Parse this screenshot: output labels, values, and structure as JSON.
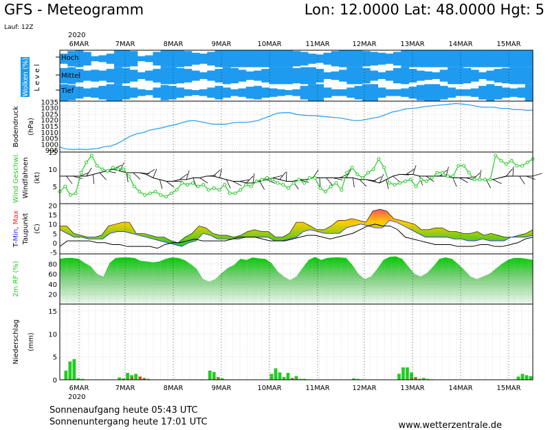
{
  "header": {
    "title": "GFS - Meteogramm",
    "coords": "Lon: 12.0000 Lat: 48.0000 Hgt: 5",
    "run": "Lauf: 12Z"
  },
  "footer": {
    "sunrise": "Sonnenaufgang heute 05:43 UTC",
    "sunset": "Sonnenuntergang heute 17:01 UTC",
    "site": "www.wetterzentrale.de"
  },
  "colors": {
    "cloud": "#1e9bf0",
    "pressure": "#1e9bf0",
    "wind": "#22cc22",
    "tmin": "#2222ff",
    "tmax": "#ff2222",
    "rh": "#22cc22",
    "precip_rain": "#22cc22",
    "precip_conv": "#ff3333"
  },
  "chart_data": {
    "year_label": "2020",
    "x_labels": [
      "6MAR",
      "7MAR",
      "8MAR",
      "9MAR",
      "10MAR",
      "11MAR",
      "12MAR",
      "13MAR",
      "14MAR",
      "15MAR"
    ],
    "panels": [
      {
        "id": "wolken",
        "type": "heatmap",
        "ylabel": "Wolken (%)",
        "ylabel2": "Level",
        "levels": [
          "Hoch",
          "Mittel",
          "Tief"
        ],
        "series": [
          {
            "name": "Hoch",
            "values": [
              60,
              90,
              100,
              80,
              30,
              40,
              60,
              100,
              100,
              90,
              30,
              40,
              80,
              100,
              100,
              100,
              90,
              70,
              60,
              80,
              100,
              100,
              100,
              100,
              100,
              100,
              100,
              100,
              100,
              100,
              90,
              80,
              60,
              50,
              70,
              90,
              100,
              100,
              100,
              90,
              80,
              70,
              60,
              80,
              100,
              100,
              100,
              100,
              100,
              100,
              100,
              100,
              100,
              100,
              100,
              100,
              100,
              100,
              100,
              100,
              100
            ]
          },
          {
            "name": "Mittel",
            "values": [
              90,
              100,
              80,
              60,
              70,
              60,
              80,
              100,
              90,
              70,
              40,
              60,
              80,
              100,
              100,
              90,
              80,
              60,
              40,
              60,
              80,
              100,
              90,
              70,
              50,
              60,
              80,
              100,
              100,
              100,
              90,
              100,
              100,
              80,
              40,
              50,
              70,
              100,
              100,
              90,
              60,
              40,
              60,
              90,
              100,
              80,
              60,
              50,
              40,
              70,
              100,
              100,
              90,
              70,
              40,
              60,
              80,
              90,
              100,
              100,
              100
            ]
          },
          {
            "name": "Tief",
            "values": [
              100,
              90,
              70,
              50,
              60,
              80,
              100,
              100,
              80,
              60,
              40,
              30,
              60,
              90,
              80,
              60,
              40,
              30,
              40,
              60,
              80,
              60,
              40,
              50,
              70,
              80,
              60,
              50,
              40,
              30,
              40,
              80,
              100,
              100,
              60,
              40,
              40,
              60,
              80,
              100,
              100,
              60,
              40,
              40,
              50,
              70,
              90,
              100,
              100,
              80,
              60,
              40,
              40,
              50,
              80,
              100,
              80,
              60,
              50,
              60,
              100
            ]
          }
        ]
      },
      {
        "id": "bodendruck",
        "type": "line",
        "ylabel": "Bodendruck",
        "unit": "(hPa)",
        "yticks": [
          995,
          1000,
          1005,
          1010,
          1015,
          1020,
          1025,
          1030,
          1035
        ],
        "ylim": [
          994,
          1036
        ],
        "values": [
          998,
          996.5,
          996,
          996.5,
          996,
          996.5,
          997,
          998.5,
          999,
          1001,
          1004,
          1007,
          1009,
          1010,
          1012,
          1013,
          1014,
          1015.5,
          1016.5,
          1018,
          1019.5,
          1020,
          1019,
          1018,
          1017,
          1017,
          1017,
          1018,
          1018.5,
          1018.5,
          1019,
          1020,
          1022,
          1024,
          1026,
          1026.5,
          1026.5,
          1025,
          1024.5,
          1024,
          1024,
          1023.5,
          1023,
          1022.5,
          1022,
          1021,
          1020,
          1020,
          1021,
          1022,
          1023,
          1025,
          1027,
          1028,
          1029.5,
          1030,
          1030.5,
          1031.5,
          1032,
          1032.5,
          1033,
          1033.5,
          1034,
          1033.5,
          1033,
          1032,
          1031,
          1031,
          1031,
          1030,
          1030,
          1029,
          1029,
          1028.5,
          1028.5
        ]
      },
      {
        "id": "wind",
        "type": "line",
        "ylabel": "Wind Geschwi.",
        "ylabel2": "Windfahnen",
        "unit": "(kt)",
        "yticks": [
          5,
          10,
          15
        ],
        "ylim": [
          0,
          15
        ],
        "gust": [
          3.5,
          5,
          2.5,
          3,
          9,
          12,
          14,
          11,
          10,
          9.5,
          10.5,
          10,
          10,
          8,
          5,
          3.5,
          2.5,
          3,
          3.5,
          2.5,
          2,
          3,
          4,
          6,
          5.5,
          6,
          5,
          5.5,
          4,
          4.5,
          4,
          5.5,
          3,
          3,
          4,
          5.5,
          5,
          6.5,
          7,
          7.5,
          7,
          6,
          5.5,
          4.5,
          6,
          7,
          6,
          7.5,
          7.5,
          4.5,
          3.5,
          5,
          6,
          4,
          9,
          10.5,
          8.5,
          7.5,
          9,
          10,
          13,
          10.5,
          6,
          5.5,
          6,
          6.5,
          7,
          5,
          7,
          6.5,
          7.5,
          9,
          9,
          8,
          8,
          11,
          11,
          9,
          7,
          7,
          7,
          7,
          14,
          12.5,
          11.5,
          12.5,
          11,
          11,
          12,
          13
        ],
        "mean": [
          8,
          8,
          8,
          8,
          8,
          8.5,
          9,
          9.5,
          10,
          9.5,
          9,
          9,
          9,
          8.5,
          7.5,
          7,
          6.5,
          6.5,
          7,
          7,
          7.5,
          7.5,
          8,
          8,
          7.5,
          7,
          6.5,
          6.5,
          6,
          6,
          6.5,
          7,
          7.5,
          7,
          6.5,
          6.5,
          7,
          7,
          7.5,
          7.5,
          7.5,
          7.5,
          7.5,
          7.5,
          7.5,
          7,
          7,
          6.5,
          6,
          7,
          8,
          8.5,
          8.5,
          8.5,
          8,
          8,
          8,
          8,
          8,
          7.5,
          7.5,
          7.5,
          7,
          7,
          7,
          7,
          7.5,
          8,
          8,
          8,
          8,
          8
        ]
      },
      {
        "id": "temperatur",
        "type": "area",
        "ylabel": "T-Min, Max",
        "ylabel2": "Taupunkt",
        "unit": "(C)",
        "yticks": [
          -5,
          0,
          5,
          10,
          15,
          20
        ],
        "ylim": [
          -6,
          21
        ],
        "tmax": [
          9,
          9,
          5,
          4,
          3,
          3,
          4,
          9,
          10,
          11,
          11,
          5,
          5,
          4,
          3,
          3,
          1,
          0,
          3,
          5,
          9,
          8,
          5,
          4,
          4,
          3,
          4,
          6,
          7,
          6,
          6,
          3,
          3,
          5,
          11,
          11,
          9,
          7,
          7,
          9,
          12,
          12,
          13,
          12,
          11,
          17,
          18,
          17,
          13,
          12,
          11,
          10,
          7,
          7,
          8,
          8,
          6,
          6,
          5,
          5,
          6,
          4,
          5,
          4,
          3,
          3,
          4,
          5,
          7
        ],
        "tmin": [
          7,
          5,
          3,
          3,
          2,
          2,
          2,
          5,
          6,
          6,
          5,
          4,
          3,
          2,
          1,
          0,
          -1,
          -2,
          0,
          1,
          5,
          4,
          2,
          2,
          2,
          2,
          3,
          3,
          3,
          3,
          1,
          1,
          2,
          3,
          6,
          7,
          6,
          5,
          5,
          5,
          8,
          9,
          10,
          9,
          8,
          8,
          12,
          11,
          9,
          7,
          5,
          3,
          3,
          3,
          3,
          2,
          2,
          1,
          1,
          2,
          1,
          1,
          1,
          3,
          3,
          3,
          4
        ],
        "dew": [
          -2,
          1,
          1,
          1,
          1,
          0,
          0,
          -1,
          -1,
          -2,
          -2,
          -2,
          -2,
          -3,
          -1,
          0,
          0,
          1,
          2,
          1,
          1,
          1,
          1,
          2,
          3,
          3,
          3,
          2,
          1,
          1,
          1,
          2,
          3,
          4,
          4,
          3,
          2,
          3,
          4,
          5,
          7,
          9,
          10,
          9,
          9,
          7,
          3,
          2,
          1,
          0,
          -1,
          -1,
          -1,
          -2,
          -2,
          -2,
          -1,
          -1,
          -2,
          -2,
          -1,
          0,
          2,
          3
        ]
      },
      {
        "id": "feuchte",
        "type": "area",
        "ylabel": "2m RF (%)",
        "yticks": [
          20,
          40,
          60,
          80
        ],
        "ylim": [
          0,
          100
        ],
        "values": [
          90,
          92,
          92,
          90,
          82,
          75,
          60,
          55,
          82,
          92,
          93,
          93,
          92,
          86,
          85,
          83,
          85,
          90,
          93,
          92,
          88,
          80,
          70,
          50,
          45,
          50,
          62,
          72,
          78,
          90,
          88,
          93,
          91,
          90,
          82,
          65,
          55,
          48,
          55,
          72,
          88,
          94,
          88,
          92,
          93,
          93,
          92,
          78,
          60,
          50,
          55,
          70,
          88,
          94,
          95,
          90,
          75,
          60,
          55,
          62,
          75,
          90,
          93,
          90,
          80,
          68,
          55,
          50,
          55,
          60,
          70,
          80,
          88,
          92,
          92,
          90,
          88
        ]
      },
      {
        "id": "niederschlag",
        "type": "bar",
        "ylabel": "Niederschlag",
        "unit": "(mm)",
        "yticks": [
          0,
          5,
          10,
          15
        ],
        "ylim": [
          0,
          16.5
        ],
        "rain": [
          0,
          2,
          4,
          4.5,
          0.3,
          0.2,
          0,
          0,
          0,
          0,
          0,
          0,
          0,
          0,
          0.5,
          0.3,
          1.5,
          1,
          1.3,
          0.7,
          0.4,
          0.2,
          0,
          0,
          0,
          0,
          0,
          0,
          0,
          0,
          0,
          0,
          0,
          0,
          0.1,
          0,
          2,
          1.7,
          0.6,
          0.3,
          0,
          0,
          0,
          0,
          0,
          0,
          0,
          0,
          0,
          0,
          0,
          1.3,
          2.5,
          1.6,
          0.6,
          1.5,
          0.4,
          0.8,
          0.2,
          0.2,
          0.1,
          0,
          0,
          0,
          0,
          0,
          0,
          0,
          0,
          0,
          0,
          0.3,
          0.2,
          0.1,
          0,
          0,
          0,
          0,
          0,
          0,
          0,
          0,
          1.3,
          2.7,
          2.7,
          1.6,
          0.6,
          0.2,
          0.4,
          0.2,
          0.1,
          0,
          0,
          0,
          0,
          0,
          0,
          0,
          0,
          0,
          0,
          0,
          0,
          0,
          0,
          0,
          0,
          0,
          0,
          0,
          0,
          0.7,
          1.3,
          1,
          0.8
        ],
        "conv": [
          0,
          0,
          0,
          0,
          0,
          0,
          0,
          0,
          0,
          0,
          0,
          0,
          0,
          0,
          0,
          0,
          0,
          0.5,
          0,
          0.7,
          0.3,
          0,
          0,
          0,
          0,
          0,
          0,
          0,
          0,
          0,
          0,
          0,
          0,
          0,
          0,
          0,
          0,
          0.2,
          0.3,
          0,
          0,
          0,
          0,
          0,
          0,
          0,
          0,
          0,
          0,
          0,
          0,
          0,
          0,
          0,
          0,
          0.1,
          0.3,
          0.2,
          0,
          0,
          0,
          0,
          0,
          0,
          0,
          0,
          0,
          0,
          0,
          0,
          0,
          0,
          0,
          0,
          0,
          0,
          0,
          0,
          0,
          0,
          0,
          0,
          0,
          0,
          0,
          0.3,
          0.3,
          0.2,
          0,
          0,
          0,
          0,
          0,
          0,
          0,
          0,
          0,
          0,
          0,
          0,
          0,
          0,
          0,
          0,
          0,
          0,
          0,
          0,
          0,
          0,
          0,
          0,
          0,
          0,
          0,
          0
        ]
      }
    ]
  }
}
